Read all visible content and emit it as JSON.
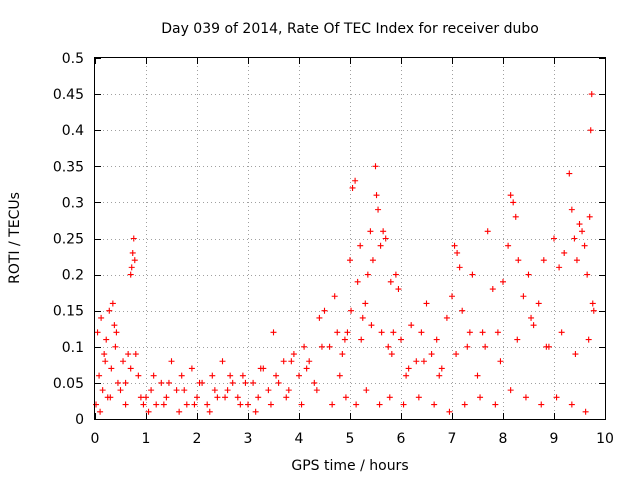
{
  "chart_data": {
    "type": "scatter",
    "title": "Day 039 of 2014, Rate Of TEC Index for receiver dubo",
    "xlabel": "GPS time / hours",
    "ylabel": "ROTI / TECUs",
    "xlim": [
      0,
      10
    ],
    "ylim": [
      0,
      0.5
    ],
    "xticks": [
      0,
      1,
      2,
      3,
      4,
      5,
      6,
      7,
      8,
      9,
      10
    ],
    "xtick_labels": [
      "0",
      "1",
      "2",
      "3",
      "4",
      "5",
      "6",
      "7",
      "8",
      "9",
      "10"
    ],
    "yticks": [
      0,
      0.05,
      0.1,
      0.15,
      0.2,
      0.25,
      0.3,
      0.35,
      0.4,
      0.45,
      0.5
    ],
    "ytick_labels": [
      "0",
      "0.05",
      "0.1",
      "0.15",
      "0.2",
      "0.25",
      "0.3",
      "0.35",
      "0.4",
      "0.45",
      "0.5"
    ],
    "grid": true,
    "marker": "+",
    "series": [
      {
        "name": "ROTI",
        "color": "#ff0000",
        "x": [
          0.02,
          0.05,
          0.08,
          0.12,
          0.15,
          0.18,
          0.22,
          0.25,
          0.28,
          0.32,
          0.35,
          0.38,
          0.42,
          0.45,
          0.5,
          0.55,
          0.6,
          0.65,
          0.7,
          0.72,
          0.74,
          0.76,
          0.78,
          0.8,
          0.85,
          0.9,
          0.95,
          1.0,
          1.1,
          1.2,
          1.3,
          1.4,
          1.5,
          1.6,
          1.7,
          1.8,
          1.9,
          2.0,
          2.1,
          2.2,
          2.3,
          2.4,
          2.5,
          2.6,
          2.7,
          2.8,
          2.9,
          3.0,
          3.1,
          3.2,
          3.3,
          3.4,
          3.5,
          3.6,
          3.7,
          3.8,
          3.9,
          4.0,
          4.1,
          4.2,
          4.3,
          4.4,
          4.5,
          4.6,
          4.7,
          4.8,
          4.85,
          4.9,
          4.95,
          5.0,
          5.05,
          5.1,
          5.15,
          5.2,
          5.25,
          5.3,
          5.35,
          5.4,
          5.45,
          5.5,
          5.52,
          5.55,
          5.6,
          5.65,
          5.7,
          5.75,
          5.8,
          5.85,
          5.9,
          5.95,
          6.0,
          6.1,
          6.2,
          6.3,
          6.4,
          6.5,
          6.6,
          6.7,
          6.8,
          6.9,
          7.0,
          7.05,
          7.1,
          7.15,
          7.2,
          7.3,
          7.4,
          7.5,
          7.6,
          7.7,
          7.8,
          7.9,
          8.0,
          8.1,
          8.15,
          8.2,
          8.25,
          8.3,
          8.4,
          8.5,
          8.6,
          8.7,
          8.8,
          8.9,
          9.0,
          9.1,
          9.2,
          9.3,
          9.35,
          9.4,
          9.45,
          9.5,
          9.55,
          9.6,
          9.65,
          9.7,
          9.72,
          9.74,
          9.76,
          9.78,
          0.1,
          0.3,
          0.6,
          1.05,
          1.35,
          1.65,
          1.95,
          2.25,
          2.55,
          2.85,
          3.15,
          3.45,
          3.75,
          4.05,
          4.35,
          4.65,
          4.92,
          5.12,
          5.32,
          5.58,
          5.78,
          6.05,
          6.35,
          6.65,
          6.95,
          7.25,
          7.55,
          7.85,
          8.15,
          8.45,
          8.75,
          9.05,
          9.35,
          9.62,
          0.2,
          0.4,
          0.7,
          1.15,
          1.45,
          1.75,
          2.05,
          2.35,
          2.65,
          2.95,
          3.25,
          3.55,
          3.85,
          4.15,
          4.45,
          4.75,
          5.02,
          5.22,
          5.42,
          5.62,
          5.82,
          6.15,
          6.45,
          6.75,
          7.08,
          7.35,
          7.65,
          7.95,
          8.28,
          8.55,
          8.85,
          9.15,
          9.42,
          9.68
        ],
        "y": [
          0.02,
          0.12,
          0.06,
          0.14,
          0.04,
          0.09,
          0.11,
          0.03,
          0.15,
          0.07,
          0.16,
          0.13,
          0.12,
          0.05,
          0.04,
          0.08,
          0.05,
          0.09,
          0.2,
          0.21,
          0.23,
          0.25,
          0.22,
          0.09,
          0.06,
          0.03,
          0.02,
          0.03,
          0.04,
          0.02,
          0.05,
          0.03,
          0.08,
          0.04,
          0.06,
          0.02,
          0.07,
          0.03,
          0.05,
          0.02,
          0.06,
          0.03,
          0.08,
          0.04,
          0.05,
          0.03,
          0.06,
          0.02,
          0.05,
          0.03,
          0.07,
          0.04,
          0.12,
          0.05,
          0.08,
          0.04,
          0.09,
          0.06,
          0.1,
          0.08,
          0.05,
          0.14,
          0.15,
          0.1,
          0.17,
          0.06,
          0.09,
          0.11,
          0.12,
          0.22,
          0.32,
          0.33,
          0.19,
          0.24,
          0.14,
          0.16,
          0.2,
          0.26,
          0.22,
          0.35,
          0.31,
          0.29,
          0.24,
          0.26,
          0.25,
          0.1,
          0.19,
          0.12,
          0.2,
          0.18,
          0.11,
          0.06,
          0.13,
          0.08,
          0.12,
          0.16,
          0.09,
          0.11,
          0.07,
          0.14,
          0.17,
          0.24,
          0.23,
          0.21,
          0.15,
          0.1,
          0.2,
          0.06,
          0.12,
          0.26,
          0.18,
          0.12,
          0.19,
          0.24,
          0.31,
          0.3,
          0.28,
          0.22,
          0.17,
          0.2,
          0.13,
          0.16,
          0.22,
          0.1,
          0.25,
          0.21,
          0.23,
          0.34,
          0.29,
          0.25,
          0.22,
          0.27,
          0.26,
          0.24,
          0.2,
          0.28,
          0.4,
          0.45,
          0.16,
          0.15,
          0.01,
          0.03,
          0.02,
          0.01,
          0.02,
          0.01,
          0.02,
          0.01,
          0.03,
          0.02,
          0.01,
          0.02,
          0.03,
          0.02,
          0.04,
          0.02,
          0.03,
          0.02,
          0.04,
          0.02,
          0.03,
          0.02,
          0.03,
          0.02,
          0.01,
          0.02,
          0.03,
          0.02,
          0.04,
          0.03,
          0.02,
          0.03,
          0.02,
          0.01,
          0.08,
          0.1,
          0.07,
          0.06,
          0.05,
          0.04,
          0.05,
          0.04,
          0.06,
          0.05,
          0.07,
          0.06,
          0.08,
          0.07,
          0.1,
          0.12,
          0.15,
          0.11,
          0.13,
          0.12,
          0.09,
          0.07,
          0.08,
          0.06,
          0.09,
          0.12,
          0.1,
          0.08,
          0.11,
          0.14,
          0.1,
          0.12,
          0.09,
          0.11
        ]
      }
    ]
  }
}
